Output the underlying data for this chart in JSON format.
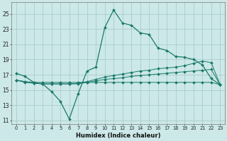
{
  "xlabel": "Humidex (Indice chaleur)",
  "bg_color": "#cce8e8",
  "grid_color": "#aacccc",
  "line_color": "#1a7a6a",
  "xlim": [
    -0.5,
    23.5
  ],
  "ylim": [
    10.5,
    26.5
  ],
  "xticks": [
    0,
    1,
    2,
    3,
    4,
    5,
    6,
    7,
    8,
    9,
    10,
    11,
    12,
    13,
    14,
    15,
    16,
    17,
    18,
    19,
    20,
    21,
    22,
    23
  ],
  "yticks": [
    11,
    13,
    15,
    17,
    19,
    21,
    23,
    25
  ],
  "main_y": [
    17.2,
    16.8,
    16.0,
    15.8,
    14.8,
    13.5,
    11.2,
    14.5,
    17.5,
    18.0,
    23.2,
    25.5,
    23.8,
    23.5,
    22.5,
    22.3,
    20.5,
    20.2,
    19.4,
    19.3,
    19.0,
    18.3,
    16.5,
    15.7
  ],
  "line2_y": [
    16.3,
    16.1,
    16.0,
    16.0,
    16.0,
    16.0,
    16.0,
    16.0,
    16.0,
    16.0,
    16.0,
    16.0,
    16.0,
    16.0,
    16.0,
    16.0,
    16.0,
    16.0,
    16.0,
    16.0,
    16.0,
    16.0,
    16.0,
    15.7
  ],
  "line3_y": [
    16.3,
    16.0,
    15.9,
    15.8,
    15.8,
    15.8,
    15.8,
    15.9,
    16.1,
    16.4,
    16.7,
    16.9,
    17.1,
    17.3,
    17.5,
    17.6,
    17.8,
    17.9,
    18.0,
    18.2,
    18.5,
    18.8,
    18.6,
    15.7
  ],
  "line4_y": [
    16.3,
    16.1,
    15.9,
    15.8,
    15.8,
    15.8,
    15.8,
    15.8,
    16.0,
    16.2,
    16.4,
    16.5,
    16.6,
    16.8,
    16.9,
    17.0,
    17.1,
    17.2,
    17.3,
    17.4,
    17.5,
    17.6,
    17.7,
    15.7
  ]
}
